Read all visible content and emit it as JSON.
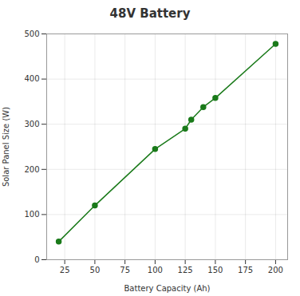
{
  "chart_data": {
    "type": "line",
    "title": "48V Battery",
    "xlabel": "Battery Capacity (Ah)",
    "ylabel": "Solar Panel Size (W)",
    "x": [
      20,
      50,
      100,
      125,
      130,
      140,
      150,
      200
    ],
    "values": [
      40,
      120,
      245,
      290,
      310,
      338,
      358,
      478
    ],
    "color": "#1a7a1a",
    "marker": "circle",
    "xlim": [
      10,
      210
    ],
    "ylim": [
      0,
      500
    ],
    "xticks": [
      25,
      50,
      75,
      100,
      125,
      150,
      175,
      200
    ],
    "yticks": [
      0,
      100,
      200,
      300,
      400,
      500
    ],
    "grid": true
  }
}
